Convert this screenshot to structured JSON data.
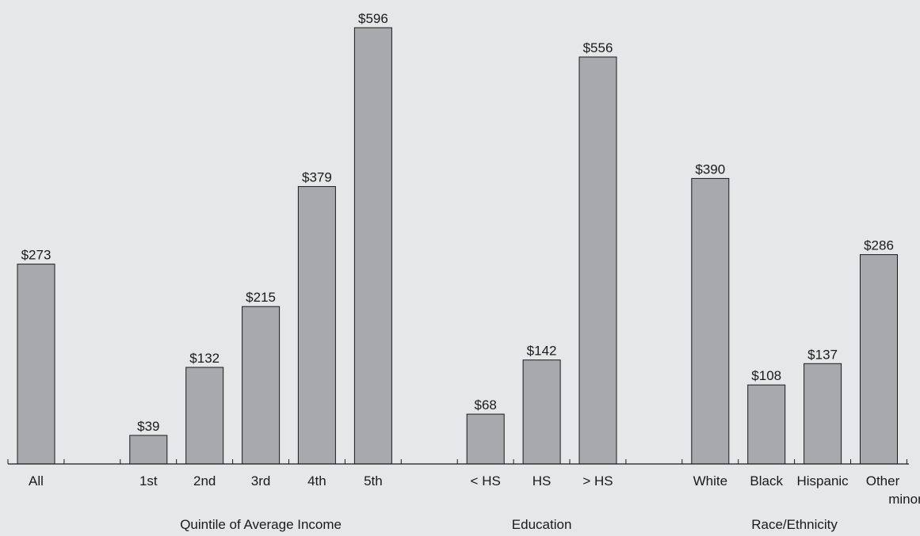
{
  "chart_data": {
    "type": "bar",
    "title": "",
    "xlabel": "",
    "ylabel": "",
    "ylim": [
      0,
      600
    ],
    "grid": false,
    "value_prefix": "$",
    "bar_color": "#a7a9ac",
    "background": "#e6e7e8",
    "categories": [
      "All",
      "1st",
      "2nd",
      "3rd",
      "4th",
      "5th",
      "< HS",
      "HS",
      "> HS",
      "White",
      "Black",
      "Hispanic",
      "Other minority"
    ],
    "values": [
      273,
      39,
      132,
      215,
      379,
      596,
      68,
      142,
      556,
      390,
      108,
      137,
      286
    ],
    "category_labels": [
      [
        "All"
      ],
      [
        "1st"
      ],
      [
        "2nd"
      ],
      [
        "3rd"
      ],
      [
        "4th"
      ],
      [
        "5th"
      ],
      [
        "< HS"
      ],
      [
        "HS"
      ],
      [
        "> HS"
      ],
      [
        "White"
      ],
      [
        "Black"
      ],
      [
        "Hispanic"
      ],
      [
        "Other",
        "minority"
      ]
    ],
    "groups": [
      {
        "label": "",
        "categories": [
          "All"
        ]
      },
      {
        "label": "Quintile of Average Income",
        "categories": [
          "1st",
          "2nd",
          "3rd",
          "4th",
          "5th"
        ]
      },
      {
        "label": "Education",
        "categories": [
          "< HS",
          "HS",
          "> HS"
        ]
      },
      {
        "label": "Race/Ethnicity",
        "categories": [
          "White",
          "Black",
          "Hispanic",
          "Other minority"
        ]
      }
    ]
  }
}
